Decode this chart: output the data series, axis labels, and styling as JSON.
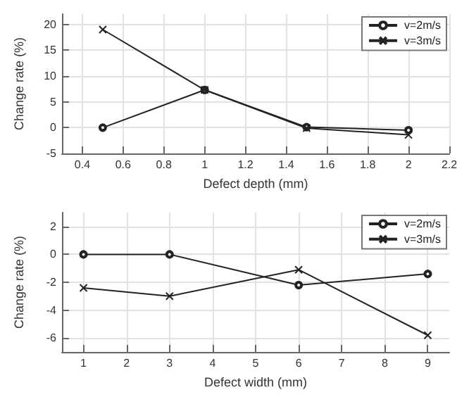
{
  "chart_data": [
    {
      "type": "line",
      "xlabel": "Defect depth (mm)",
      "ylabel": "Change rate (%)",
      "x": [
        0.5,
        1,
        1.5,
        2
      ],
      "xlim": [
        0.3,
        2.2
      ],
      "xticks": [
        0.4,
        0.6,
        0.8,
        1,
        1.2,
        1.4,
        1.6,
        1.8,
        2,
        2.2
      ],
      "ylim": [
        -5,
        22
      ],
      "yticks": [
        -5,
        0,
        5,
        10,
        15,
        20
      ],
      "grid": true,
      "legend": "top right",
      "series": [
        {
          "name": "v=2m/s",
          "color": "#222222",
          "marker": "circle",
          "values": [
            0,
            7.3,
            0.1,
            -0.5
          ]
        },
        {
          "name": "v=3m/s",
          "color": "#222222",
          "marker": "cross",
          "values": [
            19,
            7.3,
            -0.1,
            -1.4
          ]
        }
      ]
    },
    {
      "type": "line",
      "xlabel": "Defect width (mm)",
      "ylabel": "Change rate (%)",
      "x": [
        1,
        3,
        6,
        9
      ],
      "xlim": [
        0.5,
        9.5
      ],
      "xticks": [
        1,
        2,
        3,
        4,
        5,
        6,
        7,
        8,
        9
      ],
      "ylim": [
        -7,
        3
      ],
      "yticks": [
        -6,
        -4,
        -2,
        0,
        2
      ],
      "grid": true,
      "legend": "top right",
      "series": [
        {
          "name": "v=2m/s",
          "color": "#222222",
          "marker": "circle",
          "values": [
            0,
            0,
            -2.2,
            -1.4
          ]
        },
        {
          "name": "v=3m/s",
          "color": "#222222",
          "marker": "cross",
          "values": [
            -2.4,
            -3,
            -1.1,
            -5.8
          ]
        }
      ]
    }
  ]
}
